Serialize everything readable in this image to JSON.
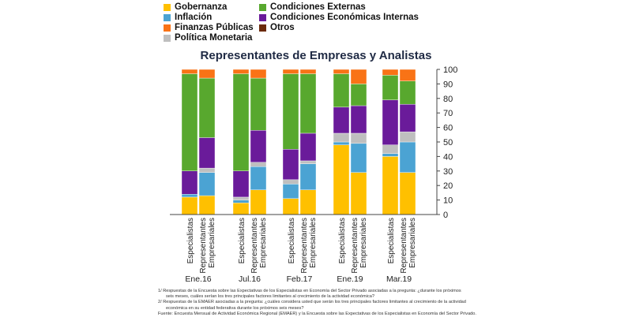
{
  "chart_data": {
    "type": "bar",
    "stacked": true,
    "title": "Representantes de Empresas y Analistas",
    "ylim": [
      0,
      100
    ],
    "yticks": [
      0,
      10,
      20,
      30,
      40,
      50,
      60,
      70,
      80,
      90,
      100
    ],
    "y_axis_side": "right",
    "groups": [
      "Ene.16",
      "Jul.16",
      "Feb.17",
      "Ene.19",
      "Mar.19"
    ],
    "bar_labels": [
      "Especialistas",
      "Representantes Empresariales"
    ],
    "categories": [
      "Ene.16 Especialistas",
      "Ene.16 Representantes Empresariales",
      "Jul.16 Especialistas",
      "Jul.16 Representantes Empresariales",
      "Feb.17 Especialistas",
      "Feb.17 Representantes Empresariales",
      "Ene.19 Especialistas",
      "Ene.19 Representantes Empresariales",
      "Mar.19 Especialistas",
      "Mar.19 Representantes Empresariales"
    ],
    "series": [
      {
        "name": "Gobernanza",
        "color": "#ffc000",
        "values": [
          12,
          13,
          8,
          17,
          11,
          17,
          48,
          29,
          40,
          29
        ]
      },
      {
        "name": "Inflación",
        "color": "#4ba3d3",
        "values": [
          2,
          16,
          2,
          16,
          10,
          18,
          2,
          20,
          2,
          21
        ]
      },
      {
        "name": "Política Monetaria",
        "color": "#bfbfbf",
        "values": [
          0,
          3,
          2,
          3,
          3,
          2,
          6,
          7,
          6,
          7
        ]
      },
      {
        "name": "Condiciones Económicas Internas",
        "color": "#6a1b9a",
        "values": [
          16,
          21,
          18,
          22,
          21,
          19,
          18,
          19,
          31,
          19
        ]
      },
      {
        "name": "Condiciones Externas",
        "color": "#58a82e",
        "values": [
          67,
          41,
          67,
          36,
          52,
          41,
          23,
          15,
          17,
          16
        ]
      },
      {
        "name": "Finanzas Públicas",
        "color": "#f97316",
        "values": [
          3,
          6,
          3,
          6,
          3,
          3,
          3,
          10,
          4,
          8
        ]
      },
      {
        "name": "Otros",
        "color": "#6b2a0a",
        "values": [
          0,
          0,
          0,
          0,
          0,
          0,
          0,
          0,
          0,
          0
        ]
      }
    ],
    "legend_position": "top",
    "grid": false
  },
  "legend_items": [
    {
      "name": "Gobernanza",
      "color": "#ffc000"
    },
    {
      "name": "Condiciones Externas",
      "color": "#58a82e"
    },
    {
      "name": "Inflación",
      "color": "#4ba3d3"
    },
    {
      "name": "Condiciones Económicas Internas",
      "color": "#6a1b9a"
    },
    {
      "name": "Finanzas Públicas",
      "color": "#f97316"
    },
    {
      "name": "Otros",
      "color": "#6b2a0a"
    },
    {
      "name": "Política Monetaria",
      "color": "#bfbfbf"
    }
  ],
  "notes": {
    "line1": "1/ Respuestas de la Encuesta sobre las Expectativas de los Especialistas en Economía del Sector Privado asociadas a la pregunta: ¿durante los próximos",
    "line2": "seis meses, cuáles serían los tres principales factores limitantes al crecimiento de la actividad económica?",
    "line3": "2/ Respuestas de la EMAER asociadas a la pregunta: ¿cuáles considera usted que serán los tres principales factores limitantes al crecimiento de la actividad",
    "line4": "económica en su entidad federativa durante los próximos seis meses?",
    "line5": "Fuente: Encuesta Mensual de Actividad Económica Regional (EMAER) y la Encuesta sobre las Expectativas de los Especialistas en Economía del Sector Privado."
  }
}
